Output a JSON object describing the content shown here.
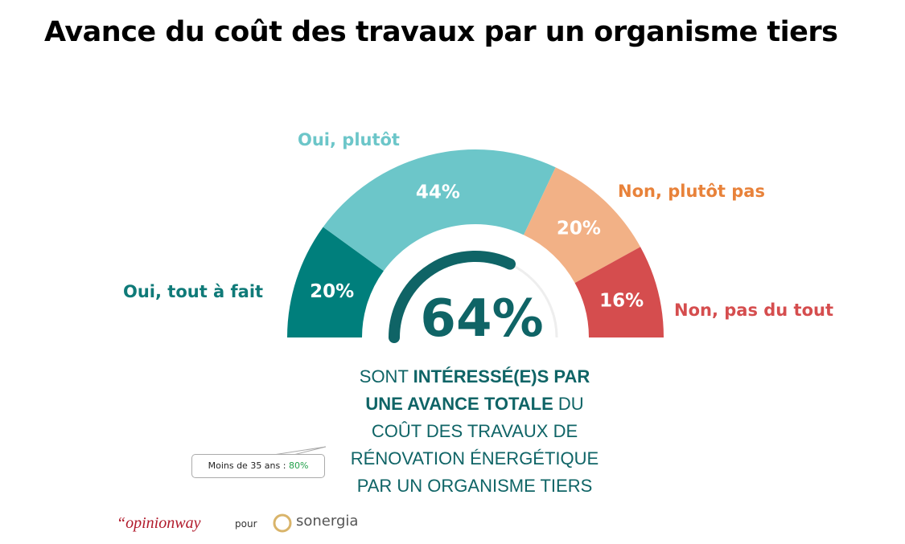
{
  "title": "Avance du coût des travaux par un organisme tiers",
  "chart_data": {
    "type": "pie",
    "variant": "half-donut",
    "categories": [
      "Oui, tout à fait",
      "Oui, plutôt",
      "Non, plutôt pas",
      "Non, pas du tout"
    ],
    "values": [
      20,
      44,
      20,
      16
    ],
    "data_labels": [
      "20%",
      "44%",
      "20%",
      "16%"
    ],
    "colors": [
      "#007f7c",
      "#6cc6c9",
      "#f2b186",
      "#d54d4e"
    ],
    "label_colors": [
      "#0f7a78",
      "#6cc6c9",
      "#e8823a",
      "#d54d4e"
    ],
    "gauge": {
      "value": 64,
      "label": "64%",
      "color": "#0f6466",
      "track_color": "#eeeeee"
    }
  },
  "description": {
    "line1_normal": "SONT ",
    "line1_bold": "INTÉRESSÉ(E)S PAR",
    "line2_bold": "UNE AVANCE TOTALE",
    "line2_normal": " DU",
    "line3": "COÛT DES TRAVAUX DE",
    "line4": "RÉNOVATION ÉNERGÉTIQUE",
    "line5": "PAR UN ORGANISME TIERS"
  },
  "callout": {
    "label": "Moins de 35 ans : ",
    "value": "80%"
  },
  "footer": {
    "brand": "“opinionway",
    "pour": "pour",
    "partner": "sonergia"
  }
}
